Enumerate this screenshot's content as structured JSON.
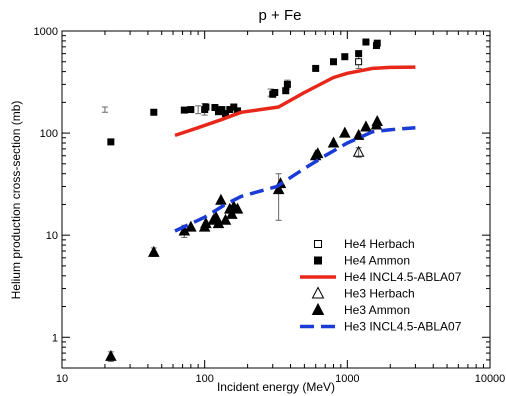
{
  "chart_data": {
    "type": "scatter",
    "title": "p + Fe",
    "xlabel": "Incident energy (MeV)",
    "ylabel": "Helium production cross-section (mb)",
    "xscale": "log",
    "yscale": "log",
    "xlim": [
      10,
      10000
    ],
    "ylim": [
      0.5,
      1000
    ],
    "x_ticks": [
      10,
      100,
      1000,
      10000
    ],
    "x_tick_labels": [
      "10",
      "100",
      "1000",
      "10000"
    ],
    "y_ticks": [
      1,
      10,
      100,
      1000
    ],
    "y_tick_labels": [
      "1",
      "10",
      "100",
      "1000"
    ],
    "grid": false,
    "legend_position": "bottom-right",
    "series": [
      {
        "name": "He4 Herbach",
        "kind": "points",
        "marker": "open-square",
        "color": "#000000",
        "points": [
          [
            1200,
            500
          ]
        ],
        "err": [
          [
            430,
            580
          ]
        ]
      },
      {
        "name": "He4 Ammon",
        "kind": "points",
        "marker": "filled-square",
        "color": "#000000",
        "points": [
          [
            22,
            82
          ],
          [
            44,
            160
          ],
          [
            72,
            168
          ],
          [
            80,
            170
          ],
          [
            100,
            170
          ],
          [
            102,
            180
          ],
          [
            118,
            178
          ],
          [
            125,
            162
          ],
          [
            132,
            170
          ],
          [
            140,
            155
          ],
          [
            150,
            170
          ],
          [
            160,
            180
          ],
          [
            170,
            165
          ],
          [
            300,
            240
          ],
          [
            310,
            250
          ],
          [
            370,
            260
          ],
          [
            380,
            300
          ],
          [
            600,
            430
          ],
          [
            800,
            500
          ],
          [
            960,
            560
          ],
          [
            1200,
            600
          ],
          [
            1350,
            780
          ],
          [
            1600,
            720
          ],
          [
            1620,
            760
          ]
        ],
        "err": [
          [
            20,
            180,
            160
          ],
          [
            90,
            185,
            155
          ],
          [
            100,
            195,
            150
          ],
          [
            290,
            230,
            270
          ],
          [
            380,
            270,
            330
          ]
        ]
      },
      {
        "name": "He4 INCL4.5-ABLA07",
        "kind": "line",
        "color": "#e8271b",
        "dash": false,
        "points": [
          [
            62,
            95
          ],
          [
            90,
            113
          ],
          [
            130,
            135
          ],
          [
            180,
            160
          ],
          [
            330,
            180
          ],
          [
            500,
            250
          ],
          [
            800,
            350
          ],
          [
            1000,
            385
          ],
          [
            1500,
            430
          ],
          [
            2000,
            440
          ],
          [
            3000,
            443
          ]
        ]
      },
      {
        "name": "He3 Herbach",
        "kind": "points",
        "marker": "open-triangle",
        "color": "#000000",
        "points": [
          [
            1200,
            65
          ]
        ],
        "err": [
          [
            1200,
            72,
            58
          ]
        ]
      },
      {
        "name": "He3 Ammon",
        "kind": "points",
        "marker": "filled-triangle",
        "color": "#000000",
        "points": [
          [
            22,
            0.65
          ],
          [
            44,
            6.8
          ],
          [
            72,
            11
          ],
          [
            80,
            12
          ],
          [
            100,
            12
          ],
          [
            102,
            13
          ],
          [
            115,
            14
          ],
          [
            120,
            15
          ],
          [
            125,
            13
          ],
          [
            130,
            22
          ],
          [
            140,
            14
          ],
          [
            150,
            18
          ],
          [
            155,
            16
          ],
          [
            160,
            19
          ],
          [
            170,
            18
          ],
          [
            330,
            28
          ],
          [
            340,
            32
          ],
          [
            600,
            60
          ],
          [
            620,
            63
          ],
          [
            800,
            80
          ],
          [
            960,
            100
          ],
          [
            1200,
            95
          ],
          [
            1350,
            115
          ],
          [
            1600,
            120
          ],
          [
            1620,
            130
          ]
        ],
        "err": [
          [
            22,
            0.72,
            0.58
          ],
          [
            44,
            7.5,
            6.2
          ],
          [
            72,
            12.5,
            9.5
          ],
          [
            330,
            40,
            14
          ]
        ]
      },
      {
        "name": "He3 INCL4.5-ABLA07",
        "kind": "line",
        "color": "#1a3bd6",
        "dash": true,
        "points": [
          [
            62,
            11
          ],
          [
            100,
            15
          ],
          [
            140,
            20
          ],
          [
            180,
            24
          ],
          [
            320,
            30
          ],
          [
            500,
            45
          ],
          [
            700,
            60
          ],
          [
            1000,
            80
          ],
          [
            1500,
            103
          ],
          [
            2000,
            108
          ],
          [
            3000,
            113
          ]
        ]
      }
    ]
  }
}
